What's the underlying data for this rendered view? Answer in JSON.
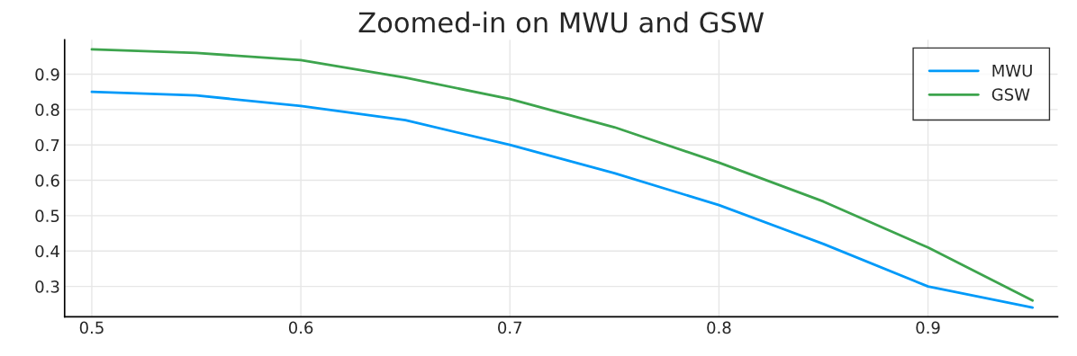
{
  "chart_data": {
    "type": "line",
    "title": "Zoomed-in on MWU and GSW",
    "x": [
      0.5,
      0.55,
      0.6,
      0.65,
      0.7,
      0.75,
      0.8,
      0.85,
      0.9,
      0.95
    ],
    "series": [
      {
        "name": "MWU",
        "color": "#009af9",
        "values": [
          0.85,
          0.84,
          0.81,
          0.77,
          0.7,
          0.62,
          0.53,
          0.42,
          0.3,
          0.24
        ]
      },
      {
        "name": "GSW",
        "color": "#3da44d",
        "values": [
          0.97,
          0.96,
          0.94,
          0.89,
          0.83,
          0.75,
          0.65,
          0.54,
          0.41,
          0.26
        ]
      }
    ],
    "xlim": [
      0.487,
      0.962
    ],
    "ylim": [
      0.214,
      0.997
    ],
    "xticks": [
      0.5,
      0.6,
      0.7,
      0.8,
      0.9
    ],
    "yticks": [
      0.3,
      0.4,
      0.5,
      0.6,
      0.7,
      0.8,
      0.9
    ],
    "grid": true,
    "legend": "top right",
    "marker": "none",
    "line_style": "solid"
  }
}
